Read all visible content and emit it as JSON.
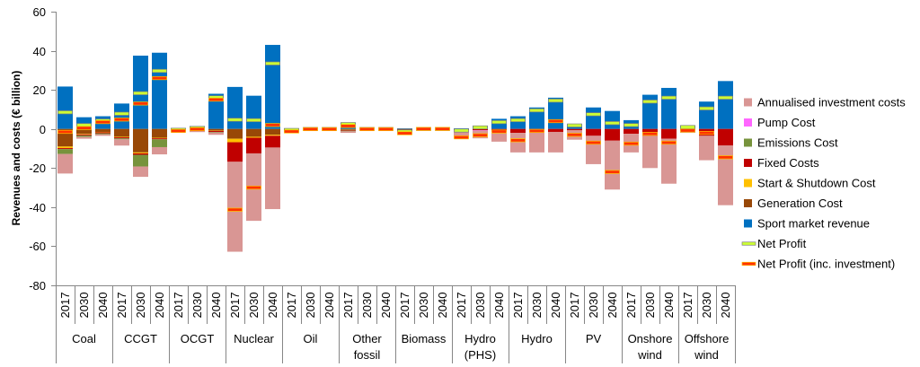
{
  "chart_data": {
    "type": "bar",
    "stacked": true,
    "ylabel": "Revenues and costs (€ billion)",
    "ylim": [
      -80,
      60
    ],
    "yticks": [
      -80,
      -60,
      -40,
      -20,
      0,
      20,
      40,
      60
    ],
    "grid": false,
    "legend_position": "right",
    "groups": [
      "Coal",
      "CCGT",
      "OCGT",
      "Nuclear",
      "Oil",
      "Other fossil",
      "Biomass",
      "Hydro (PHS)",
      "Hydro",
      "PV",
      "Onshore wind",
      "Offshore wind"
    ],
    "years": [
      "2017",
      "2030",
      "2040"
    ],
    "series": [
      {
        "name": "Sport market revenue",
        "color": "#0070C0",
        "values": [
          [
            21.7,
            6,
            6.5
          ],
          [
            13,
            37.5,
            39
          ],
          [
            0.5,
            1.5,
            18
          ],
          [
            21.5,
            17,
            43
          ],
          [
            0.3,
            0.1,
            0.1
          ],
          [
            3.2,
            0.1,
            0.1
          ],
          [
            0.3,
            0.05,
            0.05
          ],
          [
            0.3,
            1.6,
            5.2
          ],
          [
            6.5,
            11,
            16
          ],
          [
            2.5,
            11,
            9.2
          ],
          [
            4.5,
            17.5,
            21
          ],
          [
            1.8,
            14,
            24.5
          ]
        ]
      },
      {
        "name": "Generation Cost",
        "color": "#984807",
        "values": [
          [
            -9,
            -2.5,
            -1.5
          ],
          [
            -4,
            -12,
            -4.5
          ],
          [
            -0.4,
            -0.5,
            -0.8
          ],
          [
            -5,
            -4,
            -3
          ],
          [
            -0.8,
            -0.05,
            -0.05
          ],
          [
            -0.5,
            -0.05,
            -0.05
          ],
          [
            -1,
            -0.02,
            -0.02
          ],
          [
            0,
            0,
            0
          ],
          [
            0,
            0,
            0
          ],
          [
            0,
            0,
            0
          ],
          [
            0,
            0,
            0
          ],
          [
            0,
            0,
            0
          ]
        ]
      },
      {
        "name": "Start & Shutdown Cost",
        "color": "#FFC000",
        "values": [
          [
            -0.8,
            -0.3,
            -0.2
          ],
          [
            -0.3,
            -0.5,
            -0.3
          ],
          [
            -0.1,
            -0.1,
            -0.2
          ],
          [
            -1.8,
            -0.5,
            -0.5
          ],
          [
            -0.1,
            0,
            0
          ],
          [
            -0.1,
            0,
            0
          ],
          [
            -0.1,
            0,
            0
          ],
          [
            0,
            0,
            0
          ],
          [
            0,
            0,
            0
          ],
          [
            0,
            0,
            0
          ],
          [
            0,
            0,
            0
          ],
          [
            0,
            0,
            0
          ]
        ]
      },
      {
        "name": "Fixed Costs",
        "color": "#C00000",
        "values": [
          [
            -0.5,
            -0.5,
            -0.5
          ],
          [
            -0.5,
            -0.7,
            -0.5
          ],
          [
            -0.3,
            -0.3,
            -0.5
          ],
          [
            -10,
            -8,
            -6
          ],
          [
            -0.3,
            -0.05,
            -0.05
          ],
          [
            -0.3,
            -0.05,
            -0.05
          ],
          [
            -0.5,
            -0.02,
            -0.02
          ],
          [
            -0.6,
            -0.6,
            -1.5
          ],
          [
            -2,
            -1.5,
            -1.5
          ],
          [
            -0.7,
            -3.5,
            -6
          ],
          [
            -2.5,
            -3.5,
            -5
          ],
          [
            -0.8,
            -3.5,
            -8.5
          ]
        ]
      },
      {
        "name": "Emissions Cost",
        "color": "#77933C",
        "values": [
          [
            -2.5,
            -0.7,
            -0.5
          ],
          [
            -0.5,
            -6,
            -4
          ],
          [
            -0.1,
            -0.1,
            -0.3
          ],
          [
            0,
            0,
            0
          ],
          [
            -0.3,
            -0.05,
            -0.05
          ],
          [
            -0.3,
            -0.05,
            -0.05
          ],
          [
            0,
            0,
            0
          ],
          [
            0,
            0,
            0
          ],
          [
            0,
            0,
            0
          ],
          [
            0,
            0,
            0
          ],
          [
            0,
            0,
            0
          ],
          [
            0,
            0,
            0
          ]
        ]
      },
      {
        "name": "Pump Cost",
        "color": "#FF66FF",
        "values": [
          [
            0,
            0,
            0
          ],
          [
            0,
            0,
            0
          ],
          [
            0,
            0,
            0
          ],
          [
            0,
            0,
            0
          ],
          [
            0,
            0,
            0
          ],
          [
            0,
            0,
            0
          ],
          [
            0,
            0,
            0
          ],
          [
            -0.4,
            -0.2,
            -0.2
          ],
          [
            0,
            0,
            0
          ],
          [
            0,
            0,
            0
          ],
          [
            0,
            0,
            0
          ],
          [
            0,
            0,
            0
          ]
        ]
      },
      {
        "name": "Annualised investment costs",
        "color": "#D99694",
        "values": [
          [
            -10,
            -1,
            -0.8
          ],
          [
            -3.2,
            -5.3,
            -3.7
          ],
          [
            -0.6,
            -0.6,
            -1.2
          ],
          [
            -46,
            -34.5,
            -31.5
          ],
          [
            -0.5,
            -0.1,
            -0.1
          ],
          [
            -0.8,
            -0.1,
            -0.1
          ],
          [
            -1.5,
            -0.05,
            -0.05
          ],
          [
            -3.8,
            -4,
            -4.8
          ],
          [
            -10,
            -10.5,
            -10.5
          ],
          [
            -4.8,
            -14.5,
            -25
          ],
          [
            -9.5,
            -16.5,
            -23
          ],
          [
            -1.2,
            -12.5,
            -30.5
          ]
        ]
      }
    ],
    "markers": [
      {
        "name": "Net Profit",
        "color": "#CCFF33",
        "edge_color": "#7F7F7F",
        "values": [
          [
            8.5,
            2,
            4.3
          ],
          [
            7.8,
            18.3,
            29.7
          ],
          [
            -0.4,
            0.5,
            16.2
          ],
          [
            4.7,
            4.5,
            33.5
          ],
          [
            -0.5,
            0,
            0
          ],
          [
            2.5,
            0,
            0
          ],
          [
            -1.3,
            0,
            0
          ],
          [
            -0.8,
            0.8,
            3.5
          ],
          [
            4.5,
            9.5,
            14.5
          ],
          [
            1.8,
            7.5,
            3
          ],
          [
            2,
            14,
            16
          ],
          [
            1,
            10.5,
            16
          ]
        ]
      },
      {
        "name": "Net Profit (inc. investment)",
        "color": "#FF3300",
        "edge_color": "#FFC000",
        "values": [
          [
            -1.5,
            0.5,
            3.5
          ],
          [
            4.8,
            13,
            26
          ],
          [
            -1,
            -0.1,
            15
          ],
          [
            -41.3,
            -30,
            2
          ],
          [
            -1.3,
            -0.1,
            -0.1
          ],
          [
            1.5,
            -0.1,
            -0.1
          ],
          [
            -2.2,
            0,
            0
          ],
          [
            -4.3,
            -3.2,
            -1.3
          ],
          [
            -5.8,
            -1,
            4
          ],
          [
            -3,
            -7,
            -22
          ],
          [
            -7.5,
            -2.5,
            -7
          ],
          [
            -0.8,
            -2,
            -14.5
          ]
        ]
      }
    ]
  }
}
